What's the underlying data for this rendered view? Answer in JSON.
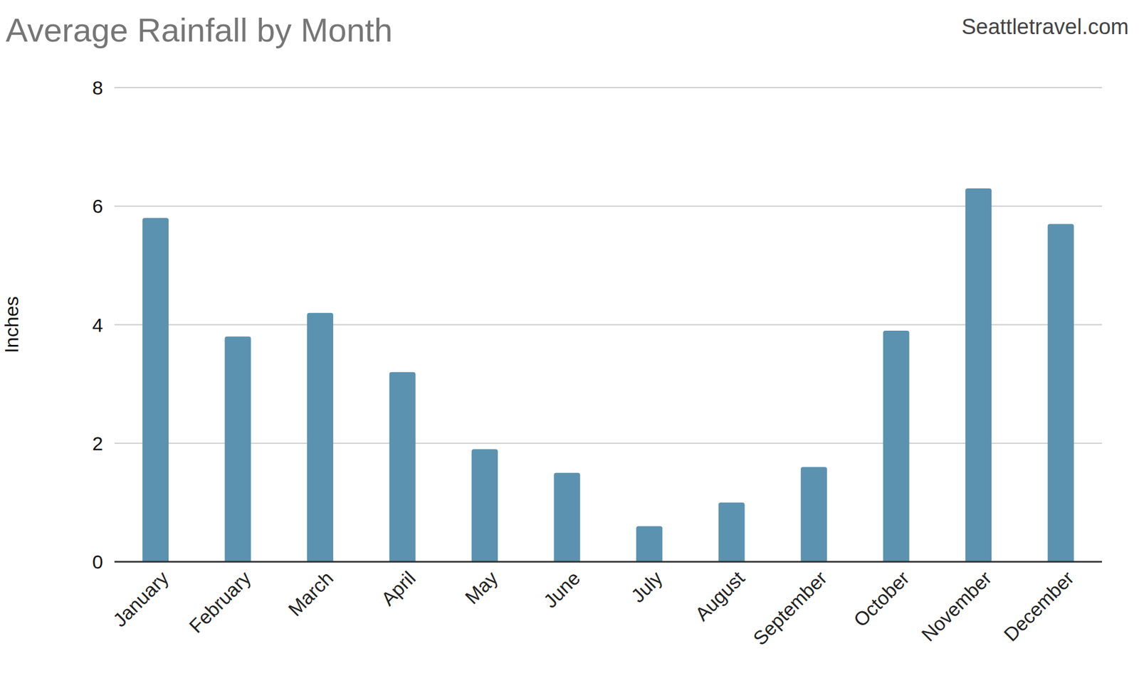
{
  "chart_data": {
    "type": "bar",
    "title": "Average Rainfall by Month",
    "annotations": [
      "Seattletravel.com"
    ],
    "ylabel": "Inches",
    "categories": [
      "January",
      "February",
      "March",
      "April",
      "May",
      "June",
      "July",
      "August",
      "September",
      "October",
      "November",
      "December"
    ],
    "values": [
      5.8,
      3.8,
      4.2,
      3.2,
      1.9,
      1.5,
      0.6,
      1.0,
      1.6,
      3.9,
      6.3,
      5.7
    ],
    "color": "#5b92b0",
    "ylim": [
      0,
      8
    ],
    "yticks": [
      0,
      2,
      4,
      6,
      8
    ],
    "grid": true
  }
}
